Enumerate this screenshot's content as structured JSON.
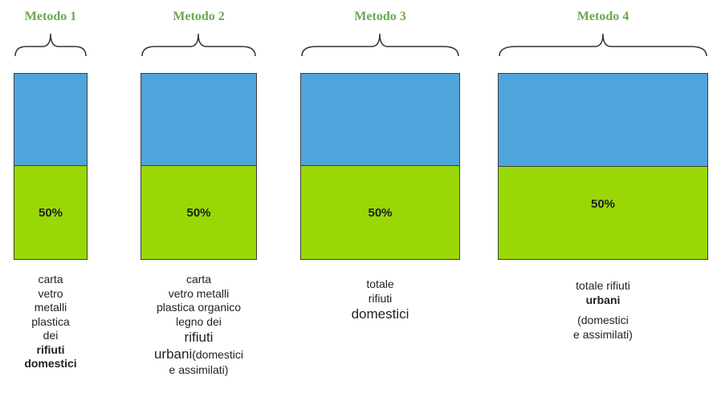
{
  "colors": {
    "title_green": "#6aa84f",
    "top_fill": "#4ea5dc",
    "bottom_fill": "#99d806"
  },
  "methods": [
    {
      "title": "Metodo 1",
      "percent": "50%",
      "desc": [
        "carta",
        "vetro",
        "metalli",
        "plastica",
        "dei",
        "rifiuti",
        "domestici"
      ]
    },
    {
      "title": "Metodo 2",
      "percent": "50%",
      "desc": [
        "carta",
        "vetro metalli",
        "plastica organico",
        "legno  dei",
        "rifiuti",
        "urbani",
        "(domestici",
        "e assimilati)"
      ]
    },
    {
      "title": "Metodo 3",
      "percent": "50%",
      "desc": [
        "totale",
        "rifiuti",
        "domestici"
      ]
    },
    {
      "title": "Metodo 4",
      "percent": "50%",
      "desc": [
        "totale rifiuti",
        "urbani",
        "(domestici",
        "e assimilati)"
      ]
    }
  ]
}
